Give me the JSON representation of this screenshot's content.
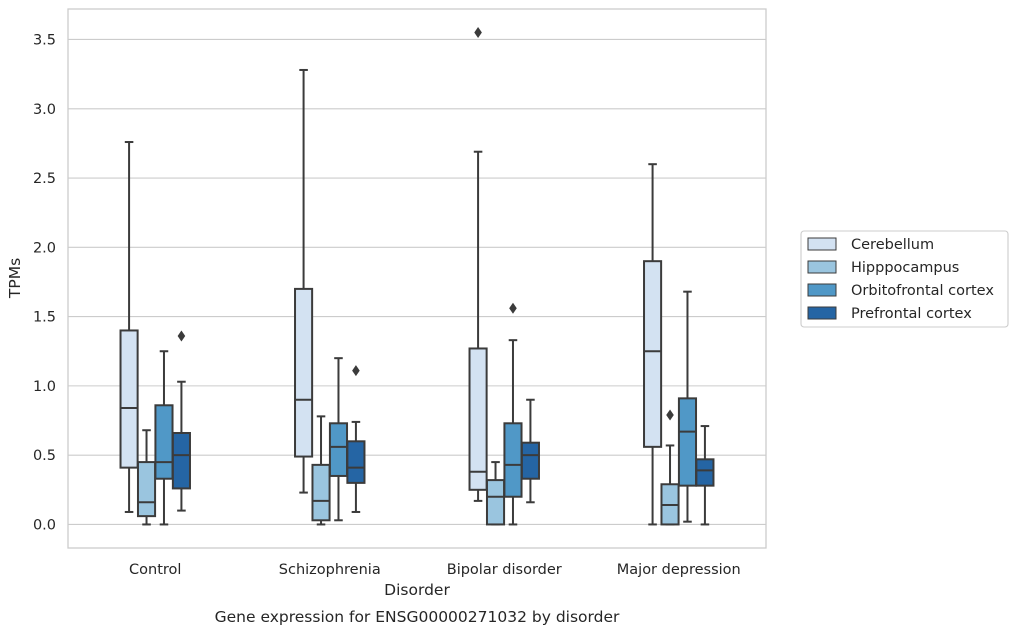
{
  "chart_data": {
    "type": "box",
    "title": "",
    "caption": "Gene expression for ENSG00000271032 by disorder",
    "xlabel": "Disorder",
    "ylabel": "TPMs",
    "categories": [
      "Control",
      "Schizophrenia",
      "Bipolar disorder",
      "Major depression"
    ],
    "yticks": [
      "0.0",
      "0.5",
      "1.0",
      "1.5",
      "2.0",
      "2.5",
      "3.0",
      "3.5"
    ],
    "ylim": [
      -0.17,
      3.72
    ],
    "grid": "horizontal",
    "legend_position": "right",
    "series": [
      {
        "name": "Cerebellum",
        "color": "#d3e2f2",
        "boxes": [
          {
            "whislo": 0.09,
            "q1": 0.41,
            "med": 0.84,
            "q3": 1.4,
            "whishi": 2.76,
            "fliers": []
          },
          {
            "whislo": 0.23,
            "q1": 0.49,
            "med": 0.9,
            "q3": 1.7,
            "whishi": 3.28,
            "fliers": []
          },
          {
            "whislo": 0.17,
            "q1": 0.25,
            "med": 0.38,
            "q3": 1.27,
            "whishi": 2.69,
            "fliers": [
              3.55
            ]
          },
          {
            "whislo": 0.0,
            "q1": 0.56,
            "med": 1.25,
            "q3": 1.9,
            "whishi": 2.6,
            "fliers": []
          }
        ]
      },
      {
        "name": "Hipppocampus",
        "color": "#9ac5df",
        "boxes": [
          {
            "whislo": 0.0,
            "q1": 0.06,
            "med": 0.16,
            "q3": 0.45,
            "whishi": 0.68,
            "fliers": []
          },
          {
            "whislo": 0.0,
            "q1": 0.03,
            "med": 0.17,
            "q3": 0.43,
            "whishi": 0.78,
            "fliers": []
          },
          {
            "whislo": 0.0,
            "q1": 0.0,
            "med": 0.2,
            "q3": 0.32,
            "whishi": 0.45,
            "fliers": []
          },
          {
            "whislo": 0.0,
            "q1": 0.0,
            "med": 0.14,
            "q3": 0.29,
            "whishi": 0.57,
            "fliers": [
              0.79
            ]
          }
        ]
      },
      {
        "name": "Orbitofrontal cortex",
        "color": "#5098c7",
        "boxes": [
          {
            "whislo": 0.0,
            "q1": 0.33,
            "med": 0.45,
            "q3": 0.86,
            "whishi": 1.25,
            "fliers": []
          },
          {
            "whislo": 0.03,
            "q1": 0.35,
            "med": 0.56,
            "q3": 0.73,
            "whishi": 1.2,
            "fliers": []
          },
          {
            "whislo": 0.0,
            "q1": 0.2,
            "med": 0.43,
            "q3": 0.73,
            "whishi": 1.33,
            "fliers": [
              1.56
            ]
          },
          {
            "whislo": 0.02,
            "q1": 0.28,
            "med": 0.67,
            "q3": 0.91,
            "whishi": 1.68,
            "fliers": []
          }
        ]
      },
      {
        "name": "Prefrontal cortex",
        "color": "#2565a4",
        "boxes": [
          {
            "whislo": 0.1,
            "q1": 0.26,
            "med": 0.5,
            "q3": 0.66,
            "whishi": 1.03,
            "fliers": [
              1.36
            ]
          },
          {
            "whislo": 0.09,
            "q1": 0.3,
            "med": 0.41,
            "q3": 0.6,
            "whishi": 0.74,
            "fliers": [
              1.11
            ]
          },
          {
            "whislo": 0.16,
            "q1": 0.33,
            "med": 0.5,
            "q3": 0.59,
            "whishi": 0.9,
            "fliers": []
          },
          {
            "whislo": 0.0,
            "q1": 0.28,
            "med": 0.39,
            "q3": 0.47,
            "whishi": 0.71,
            "fliers": []
          }
        ]
      }
    ]
  }
}
